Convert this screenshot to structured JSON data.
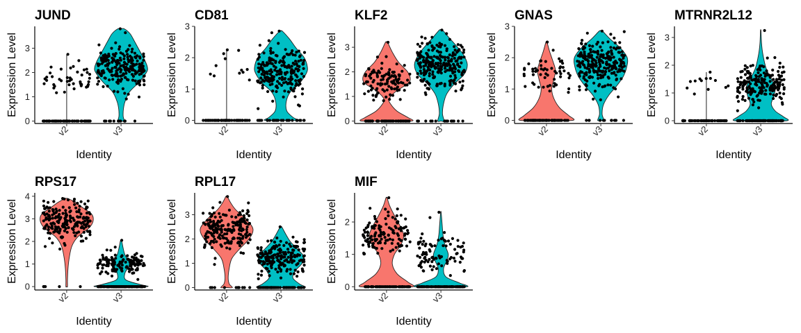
{
  "figure": {
    "groups": [
      "v2",
      "v3"
    ],
    "colors": {
      "v2": "#F8766D",
      "v3": "#00BFC4"
    },
    "point_color": "#000000"
  },
  "chart_data": [
    {
      "type": "violin",
      "title": "JUND",
      "xlabel": "Identity",
      "ylabel": "Expression Level",
      "categories": [
        "v2",
        "v3"
      ],
      "ylim": [
        -0.1,
        3.9
      ],
      "yticks": [
        0,
        1,
        2,
        3
      ],
      "series": [
        {
          "fill": "#F8766D",
          "violin": false,
          "max": 2.75,
          "zero_count": 60,
          "clusters": [
            {
              "mean": 1.5,
              "sd": 0.22,
              "n": 30
            },
            {
              "mean": 2.05,
              "sd": 0.18,
              "n": 12
            }
          ],
          "density": []
        },
        {
          "fill": "#00BFC4",
          "violin": true,
          "max": 3.8,
          "zero_count": 12,
          "clusters": [
            {
              "mean": 2.2,
              "sd": 0.42,
              "n": 230
            }
          ],
          "density": [
            [
              0,
              0.12
            ],
            [
              0.2,
              0.08
            ],
            [
              0.5,
              0.09
            ],
            [
              0.8,
              0.15
            ],
            [
              1.2,
              0.32
            ],
            [
              1.6,
              0.68
            ],
            [
              2.0,
              0.96
            ],
            [
              2.2,
              1.0
            ],
            [
              2.5,
              0.9
            ],
            [
              2.9,
              0.7
            ],
            [
              3.3,
              0.5
            ],
            [
              3.6,
              0.34
            ],
            [
              3.8,
              0.12
            ]
          ]
        }
      ]
    },
    {
      "type": "violin",
      "title": "CD81",
      "xlabel": "Identity",
      "ylabel": "Expression Level",
      "categories": [
        "v2",
        "v3"
      ],
      "ylim": [
        -0.1,
        3.0
      ],
      "yticks": [
        0,
        1,
        2,
        3
      ],
      "series": [
        {
          "fill": "#F8766D",
          "violin": false,
          "max": 2.25,
          "zero_count": 65,
          "clusters": [
            {
              "mean": 1.5,
              "sd": 0.12,
              "n": 8
            },
            {
              "mean": 2.15,
              "sd": 0.08,
              "n": 3
            }
          ],
          "density": []
        },
        {
          "fill": "#00BFC4",
          "violin": true,
          "max": 2.85,
          "zero_count": 30,
          "clusters": [
            {
              "mean": 1.55,
              "sd": 0.38,
              "n": 220
            }
          ],
          "density": [
            [
              0,
              0.62
            ],
            [
              0.1,
              0.45
            ],
            [
              0.3,
              0.22
            ],
            [
              0.6,
              0.2
            ],
            [
              0.9,
              0.35
            ],
            [
              1.2,
              0.72
            ],
            [
              1.5,
              0.96
            ],
            [
              1.7,
              1.0
            ],
            [
              2.0,
              0.88
            ],
            [
              2.3,
              0.58
            ],
            [
              2.6,
              0.32
            ],
            [
              2.85,
              0.05
            ]
          ]
        }
      ]
    },
    {
      "type": "violin",
      "title": "KLF2",
      "xlabel": "Identity",
      "ylabel": "Expression Level",
      "categories": [
        "v2",
        "v3"
      ],
      "ylim": [
        -0.1,
        3.85
      ],
      "yticks": [
        0,
        1,
        2,
        3
      ],
      "series": [
        {
          "fill": "#F8766D",
          "violin": true,
          "max": 3.2,
          "zero_count": 55,
          "clusters": [
            {
              "mean": 1.65,
              "sd": 0.35,
              "n": 110
            }
          ],
          "density": [
            [
              0,
              0.96
            ],
            [
              0.15,
              0.8
            ],
            [
              0.4,
              0.4
            ],
            [
              0.7,
              0.15
            ],
            [
              0.9,
              0.1
            ],
            [
              1.2,
              0.35
            ],
            [
              1.5,
              0.78
            ],
            [
              1.7,
              0.9
            ],
            [
              2.0,
              0.8
            ],
            [
              2.4,
              0.45
            ],
            [
              2.8,
              0.22
            ],
            [
              3.2,
              0.04
            ]
          ]
        },
        {
          "fill": "#00BFC4",
          "violin": true,
          "max": 3.7,
          "zero_count": 15,
          "clusters": [
            {
              "mean": 2.3,
              "sd": 0.45,
              "n": 250
            }
          ],
          "density": [
            [
              0,
              0.12
            ],
            [
              0.3,
              0.06
            ],
            [
              0.7,
              0.1
            ],
            [
              1.1,
              0.22
            ],
            [
              1.5,
              0.5
            ],
            [
              1.9,
              0.88
            ],
            [
              2.3,
              1.0
            ],
            [
              2.7,
              0.85
            ],
            [
              3.1,
              0.55
            ],
            [
              3.4,
              0.3
            ],
            [
              3.7,
              0.06
            ]
          ]
        }
      ]
    },
    {
      "type": "violin",
      "title": "GNAS",
      "xlabel": "Identity",
      "ylabel": "Expression Level",
      "categories": [
        "v2",
        "v3"
      ],
      "ylim": [
        -0.1,
        3.0
      ],
      "yticks": [
        0,
        1,
        2,
        3
      ],
      "series": [
        {
          "fill": "#F8766D",
          "violin": true,
          "max": 2.5,
          "zero_count": 70,
          "clusters": [
            {
              "mean": 1.5,
              "sd": 0.3,
              "n": 55
            }
          ],
          "density": [
            [
              0,
              1.0
            ],
            [
              0.15,
              0.85
            ],
            [
              0.4,
              0.5
            ],
            [
              0.7,
              0.28
            ],
            [
              1.0,
              0.2
            ],
            [
              1.3,
              0.28
            ],
            [
              1.6,
              0.34
            ],
            [
              1.9,
              0.24
            ],
            [
              2.2,
              0.12
            ],
            [
              2.5,
              0.02
            ]
          ]
        },
        {
          "fill": "#00BFC4",
          "violin": true,
          "max": 2.85,
          "zero_count": 12,
          "clusters": [
            {
              "mean": 1.8,
              "sd": 0.4,
              "n": 260
            }
          ],
          "density": [
            [
              0,
              0.12
            ],
            [
              0.2,
              0.05
            ],
            [
              0.5,
              0.1
            ],
            [
              0.8,
              0.3
            ],
            [
              1.1,
              0.6
            ],
            [
              1.4,
              0.85
            ],
            [
              1.7,
              0.98
            ],
            [
              2.0,
              1.0
            ],
            [
              2.3,
              0.75
            ],
            [
              2.6,
              0.35
            ],
            [
              2.85,
              0.06
            ]
          ]
        }
      ]
    },
    {
      "type": "violin",
      "title": "MTRNR2L12",
      "xlabel": "Identity",
      "ylabel": "Expression Level",
      "categories": [
        "v2",
        "v3"
      ],
      "ylim": [
        -0.1,
        3.4
      ],
      "yticks": [
        0,
        1,
        2,
        3
      ],
      "series": [
        {
          "fill": "#F8766D",
          "violin": false,
          "max": 1.75,
          "zero_count": 65,
          "clusters": [
            {
              "mean": 1.35,
              "sd": 0.15,
              "n": 12
            }
          ],
          "density": []
        },
        {
          "fill": "#00BFC4",
          "violin": true,
          "max": 3.25,
          "zero_count": 90,
          "clusters": [
            {
              "mean": 1.3,
              "sd": 0.35,
              "n": 200
            }
          ],
          "density": [
            [
              0,
              1.0
            ],
            [
              0.15,
              0.85
            ],
            [
              0.35,
              0.55
            ],
            [
              0.6,
              0.4
            ],
            [
              0.9,
              0.5
            ],
            [
              1.2,
              0.55
            ],
            [
              1.5,
              0.4
            ],
            [
              1.9,
              0.2
            ],
            [
              2.4,
              0.08
            ],
            [
              2.8,
              0.03
            ],
            [
              3.25,
              0.01
            ]
          ]
        }
      ]
    },
    {
      "type": "violin",
      "title": "RPS17",
      "xlabel": "Identity",
      "ylabel": "Expression Level",
      "categories": [
        "v2",
        "v3"
      ],
      "ylim": [
        -0.15,
        4.15
      ],
      "yticks": [
        0,
        1,
        2,
        3,
        4
      ],
      "series": [
        {
          "fill": "#F8766D",
          "violin": true,
          "max": 3.9,
          "zero_count": 5,
          "clusters": [
            {
              "mean": 2.9,
              "sd": 0.42,
              "n": 200
            }
          ],
          "density": [
            [
              0,
              0.03
            ],
            [
              0.3,
              0.03
            ],
            [
              0.8,
              0.05
            ],
            [
              1.3,
              0.1
            ],
            [
              1.8,
              0.2
            ],
            [
              2.2,
              0.42
            ],
            [
              2.6,
              0.85
            ],
            [
              2.9,
              1.0
            ],
            [
              3.2,
              0.95
            ],
            [
              3.5,
              0.6
            ],
            [
              3.75,
              0.3
            ],
            [
              3.9,
              0.05
            ]
          ]
        },
        {
          "fill": "#00BFC4",
          "violin": true,
          "max": 2.05,
          "zero_count": 150,
          "clusters": [
            {
              "mean": 1.0,
              "sd": 0.25,
              "n": 130
            }
          ],
          "density": [
            [
              0,
              1.0
            ],
            [
              0.1,
              0.7
            ],
            [
              0.3,
              0.18
            ],
            [
              0.6,
              0.15
            ],
            [
              0.9,
              0.3
            ],
            [
              1.1,
              0.3
            ],
            [
              1.4,
              0.15
            ],
            [
              1.7,
              0.08
            ],
            [
              2.05,
              0.02
            ]
          ]
        }
      ]
    },
    {
      "type": "violin",
      "title": "RPL17",
      "xlabel": "Identity",
      "ylabel": "Expression Level",
      "categories": [
        "v2",
        "v3"
      ],
      "ylim": [
        -0.1,
        3.9
      ],
      "yticks": [
        0,
        1,
        2,
        3
      ],
      "series": [
        {
          "fill": "#F8766D",
          "violin": true,
          "max": 3.75,
          "zero_count": 12,
          "clusters": [
            {
              "mean": 2.4,
              "sd": 0.45,
              "n": 200
            }
          ],
          "density": [
            [
              0,
              0.22
            ],
            [
              0.15,
              0.1
            ],
            [
              0.4,
              0.06
            ],
            [
              0.8,
              0.1
            ],
            [
              1.2,
              0.2
            ],
            [
              1.6,
              0.5
            ],
            [
              2.0,
              0.85
            ],
            [
              2.4,
              1.0
            ],
            [
              2.8,
              0.75
            ],
            [
              3.2,
              0.35
            ],
            [
              3.5,
              0.15
            ],
            [
              3.75,
              0.03
            ]
          ]
        },
        {
          "fill": "#00BFC4",
          "violin": true,
          "max": 2.5,
          "zero_count": 60,
          "clusters": [
            {
              "mean": 1.25,
              "sd": 0.38,
              "n": 200
            }
          ],
          "density": [
            [
              0,
              0.9
            ],
            [
              0.15,
              0.7
            ],
            [
              0.4,
              0.45
            ],
            [
              0.7,
              0.55
            ],
            [
              1.0,
              0.8
            ],
            [
              1.3,
              0.85
            ],
            [
              1.6,
              0.6
            ],
            [
              1.9,
              0.35
            ],
            [
              2.2,
              0.18
            ],
            [
              2.5,
              0.03
            ]
          ]
        }
      ]
    },
    {
      "type": "violin",
      "title": "MIF",
      "xlabel": "Identity",
      "ylabel": "Expression Level",
      "categories": [
        "v2",
        "v3"
      ],
      "ylim": [
        -0.1,
        2.9
      ],
      "yticks": [
        0,
        1,
        2
      ],
      "series": [
        {
          "fill": "#F8766D",
          "violin": true,
          "max": 2.75,
          "zero_count": 80,
          "clusters": [
            {
              "mean": 1.6,
              "sd": 0.35,
              "n": 130
            }
          ],
          "density": [
            [
              0,
              1.0
            ],
            [
              0.15,
              0.8
            ],
            [
              0.4,
              0.4
            ],
            [
              0.7,
              0.22
            ],
            [
              1.0,
              0.3
            ],
            [
              1.3,
              0.55
            ],
            [
              1.6,
              0.65
            ],
            [
              1.9,
              0.5
            ],
            [
              2.2,
              0.3
            ],
            [
              2.5,
              0.12
            ],
            [
              2.75,
              0.02
            ]
          ]
        },
        {
          "fill": "#00BFC4",
          "violin": true,
          "max": 2.3,
          "zero_count": 120,
          "clusters": [
            {
              "mean": 0.95,
              "sd": 0.3,
              "n": 90
            }
          ],
          "density": [
            [
              0,
              1.0
            ],
            [
              0.12,
              0.7
            ],
            [
              0.3,
              0.2
            ],
            [
              0.55,
              0.1
            ],
            [
              0.8,
              0.22
            ],
            [
              1.0,
              0.28
            ],
            [
              1.3,
              0.15
            ],
            [
              1.6,
              0.08
            ],
            [
              1.9,
              0.05
            ],
            [
              2.3,
              0.01
            ]
          ]
        }
      ]
    }
  ]
}
